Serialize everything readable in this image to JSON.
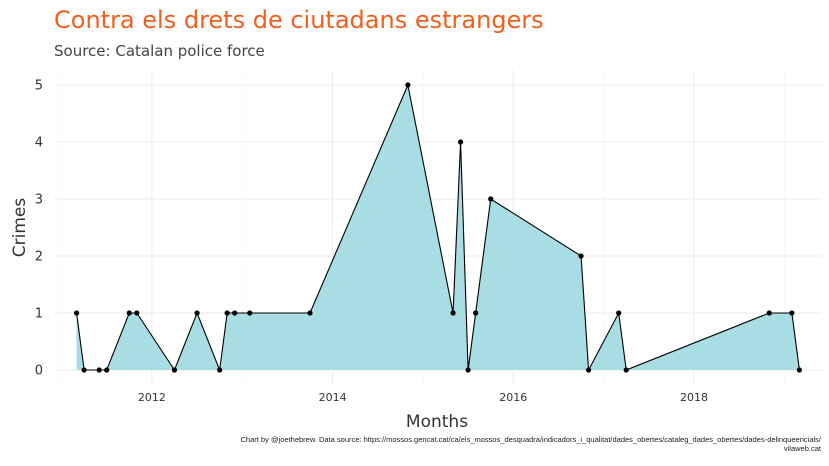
{
  "title": "Contra els drets de ciutadans estrangers",
  "subtitle": "Source: Catalan police force",
  "caption_line1": "Chart by @joethebrew. Data source: https://mossos.gencat.cat/ca/els_mossos_desquadra/indicadors_i_qualitat/dades_obertes/cataleg_dades_obertes/dades-delinqueencials/",
  "caption_line2": "vilaweb.cat",
  "colors": {
    "title": "#f25f1c",
    "area_fill": "#a7dde3",
    "line": "#000000",
    "grid": "#ebebeb"
  },
  "chart_data": {
    "type": "area",
    "xlabel": "Months",
    "ylabel": "Crimes",
    "xlim": [
      "2010-12-01",
      "2019-06-01"
    ],
    "ylim": [
      0,
      5
    ],
    "x_ticks": [
      "2012",
      "2014",
      "2016",
      "2018"
    ],
    "y_ticks": [
      "0",
      "1",
      "2",
      "3",
      "4",
      "5"
    ],
    "grid": true,
    "x": [
      "2011-03",
      "2011-04",
      "2011-06",
      "2011-07",
      "2011-10",
      "2011-11",
      "2012-04",
      "2012-07",
      "2012-10",
      "2012-11",
      "2012-12",
      "2013-02",
      "2013-10",
      "2014-11",
      "2015-05",
      "2015-06",
      "2015-07",
      "2015-08",
      "2015-10",
      "2016-10",
      "2016-11",
      "2017-03",
      "2017-04",
      "2018-11",
      "2019-02",
      "2019-03"
    ],
    "values": [
      1,
      0,
      0,
      0,
      1,
      1,
      0,
      1,
      0,
      1,
      1,
      1,
      1,
      5,
      1,
      4,
      0,
      1,
      3,
      2,
      0,
      1,
      0,
      1,
      1,
      0
    ]
  }
}
